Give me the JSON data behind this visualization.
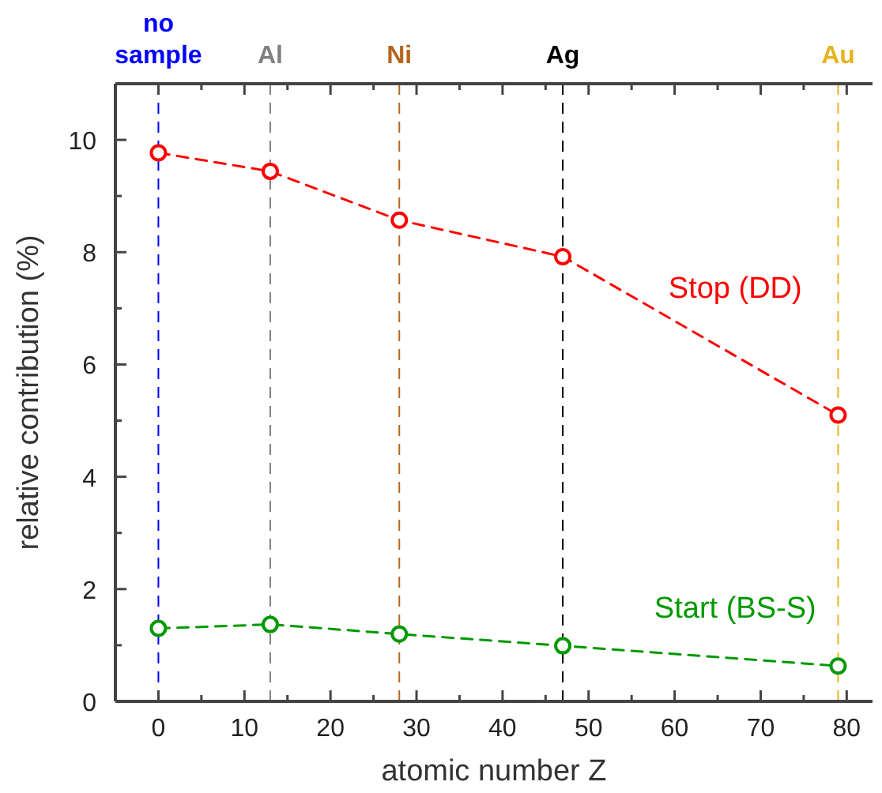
{
  "chart_data": {
    "type": "line",
    "xlabel": "atomic number Z",
    "ylabel": "relative contribution (%)",
    "x": [
      0,
      13,
      28,
      47,
      79
    ],
    "series": [
      {
        "name": "Stop (DD)",
        "color": "#ff0000",
        "values": [
          9.77,
          9.44,
          8.57,
          7.92,
          5.1
        ]
      },
      {
        "name": "Start (BS-S)",
        "color": "#009900",
        "values": [
          1.3,
          1.37,
          1.2,
          0.99,
          0.63
        ]
      }
    ],
    "xlim": [
      -5,
      83
    ],
    "ylim": [
      0,
      11
    ],
    "xticks": [
      0,
      {
        "value": 5,
        "label": null
      },
      10,
      {
        "value": 15,
        "label": null
      },
      20,
      {
        "value": 25,
        "label": null
      },
      30,
      {
        "value": 35,
        "label": null
      },
      40,
      {
        "value": 45,
        "label": null
      },
      50,
      {
        "value": 55,
        "label": null
      },
      60,
      {
        "value": 65,
        "label": null
      },
      70,
      {
        "value": 75,
        "label": null
      },
      80
    ],
    "yticks": [
      0,
      {
        "value": 1,
        "label": null
      },
      2,
      {
        "value": 3,
        "label": null
      },
      4,
      {
        "value": 5,
        "label": null
      },
      6,
      {
        "value": 7,
        "label": null
      },
      8,
      {
        "value": 9,
        "label": null
      },
      10
    ],
    "ref_lines": [
      {
        "axis": "x",
        "value": 0,
        "label": "no\nsample",
        "color": "#0000ff",
        "line_style": "dashed"
      },
      {
        "axis": "x",
        "value": 13,
        "label": "Al",
        "color": "#808080",
        "line_style": "dashed"
      },
      {
        "axis": "x",
        "value": 28,
        "label": "Ni",
        "color": "#b5651d",
        "line_style": "dashed"
      },
      {
        "axis": "x",
        "value": 47,
        "label": "Ag",
        "color": "#000000",
        "line_style": "dashed"
      },
      {
        "axis": "x",
        "value": 79,
        "label": "Au",
        "color": "#e6b422",
        "line_style": "dashed"
      }
    ],
    "marker": "circle",
    "line_style": "dashed",
    "legend": false,
    "grid": false
  }
}
